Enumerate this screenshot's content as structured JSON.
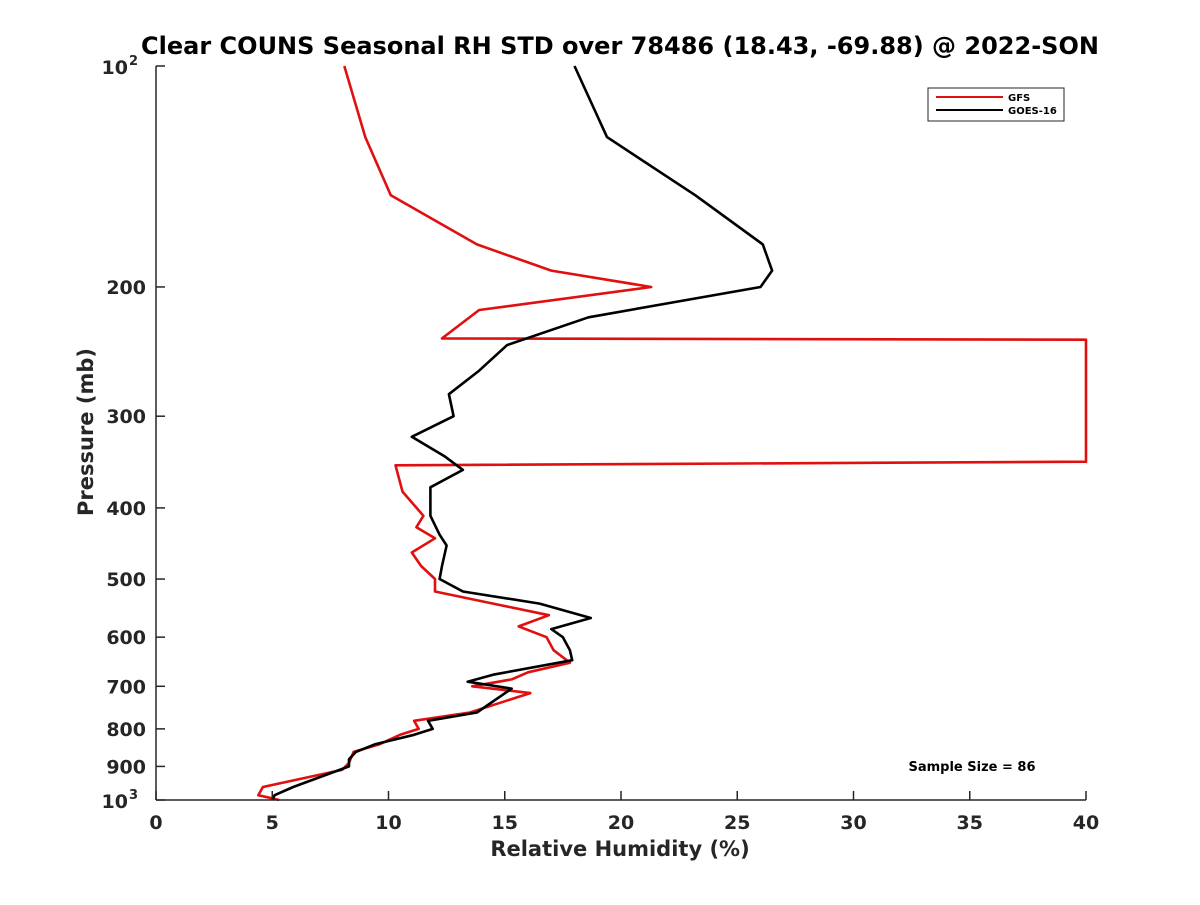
{
  "chart_data": {
    "type": "line",
    "title": "Clear COUNS Seasonal RH STD over 78486 (18.43, -69.88) @ 2022-SON",
    "xlabel": "Relative Humidity (%)",
    "ylabel": "Pressure (mb)",
    "xlim": [
      0,
      40
    ],
    "ylim": [
      100,
      1000
    ],
    "y_scale": "log",
    "y_reversed": true,
    "grid": false,
    "legend_position": "top-right",
    "x_ticks": [
      {
        "value": 0,
        "label": "0"
      },
      {
        "value": 5,
        "label": "5"
      },
      {
        "value": 10,
        "label": "10"
      },
      {
        "value": 15,
        "label": "15"
      },
      {
        "value": 20,
        "label": "20"
      },
      {
        "value": 25,
        "label": "25"
      },
      {
        "value": 30,
        "label": "30"
      },
      {
        "value": 35,
        "label": "35"
      },
      {
        "value": 40,
        "label": "40"
      }
    ],
    "y_ticks": [
      {
        "value": 100,
        "label": "10",
        "exp": "2"
      },
      {
        "value": 200,
        "label": "200"
      },
      {
        "value": 300,
        "label": "300"
      },
      {
        "value": 400,
        "label": "400"
      },
      {
        "value": 500,
        "label": "500"
      },
      {
        "value": 600,
        "label": "600"
      },
      {
        "value": 700,
        "label": "700"
      },
      {
        "value": 800,
        "label": "800"
      },
      {
        "value": 900,
        "label": "900"
      },
      {
        "value": 1000,
        "label": "10",
        "exp": "3"
      }
    ],
    "series": [
      {
        "name": "GFS",
        "color": "#e01010",
        "points": [
          [
            8.1,
            100
          ],
          [
            9.0,
            125
          ],
          [
            10.1,
            150
          ],
          [
            13.8,
            175
          ],
          [
            17.0,
            190
          ],
          [
            21.3,
            200
          ],
          [
            13.9,
            215
          ],
          [
            12.3,
            235
          ],
          [
            40.0,
            236
          ],
          [
            40.0,
            346
          ],
          [
            10.3,
            350
          ],
          [
            10.6,
            380
          ],
          [
            11.5,
            410
          ],
          [
            11.2,
            425
          ],
          [
            12.0,
            440
          ],
          [
            11.0,
            460
          ],
          [
            11.4,
            480
          ],
          [
            12.0,
            500
          ],
          [
            12.0,
            520
          ],
          [
            14.5,
            540
          ],
          [
            16.9,
            560
          ],
          [
            15.6,
            580
          ],
          [
            16.8,
            600
          ],
          [
            17.1,
            625
          ],
          [
            17.8,
            650
          ],
          [
            16.0,
            670
          ],
          [
            15.3,
            685
          ],
          [
            13.6,
            700
          ],
          [
            16.1,
            715
          ],
          [
            13.5,
            760
          ],
          [
            11.1,
            780
          ],
          [
            11.3,
            800
          ],
          [
            10.5,
            815
          ],
          [
            9.6,
            840
          ],
          [
            8.5,
            860
          ],
          [
            8.3,
            890
          ],
          [
            8.0,
            910
          ],
          [
            4.6,
            960
          ],
          [
            4.4,
            985
          ],
          [
            5.3,
            1000
          ]
        ]
      },
      {
        "name": "GOES-16",
        "color": "#000000",
        "points": [
          [
            18.0,
            100
          ],
          [
            19.4,
            125
          ],
          [
            23.2,
            150
          ],
          [
            26.1,
            175
          ],
          [
            26.5,
            190
          ],
          [
            26.0,
            200
          ],
          [
            18.6,
            220
          ],
          [
            15.1,
            240
          ],
          [
            13.9,
            260
          ],
          [
            12.6,
            280
          ],
          [
            12.8,
            300
          ],
          [
            11.0,
            320
          ],
          [
            12.4,
            340
          ],
          [
            13.2,
            355
          ],
          [
            11.8,
            375
          ],
          [
            11.8,
            410
          ],
          [
            12.2,
            435
          ],
          [
            12.5,
            450
          ],
          [
            12.3,
            480
          ],
          [
            12.2,
            500
          ],
          [
            13.2,
            520
          ],
          [
            16.5,
            540
          ],
          [
            18.7,
            565
          ],
          [
            17.0,
            585
          ],
          [
            17.5,
            600
          ],
          [
            17.8,
            625
          ],
          [
            17.9,
            645
          ],
          [
            14.5,
            675
          ],
          [
            13.4,
            690
          ],
          [
            15.3,
            705
          ],
          [
            13.8,
            760
          ],
          [
            11.7,
            780
          ],
          [
            11.9,
            800
          ],
          [
            11.1,
            815
          ],
          [
            9.4,
            840
          ],
          [
            8.6,
            860
          ],
          [
            8.3,
            880
          ],
          [
            8.3,
            900
          ],
          [
            5.9,
            960
          ],
          [
            5.1,
            985
          ],
          [
            5.0,
            1000
          ]
        ]
      }
    ],
    "annotation": "Sample Size = 86"
  }
}
